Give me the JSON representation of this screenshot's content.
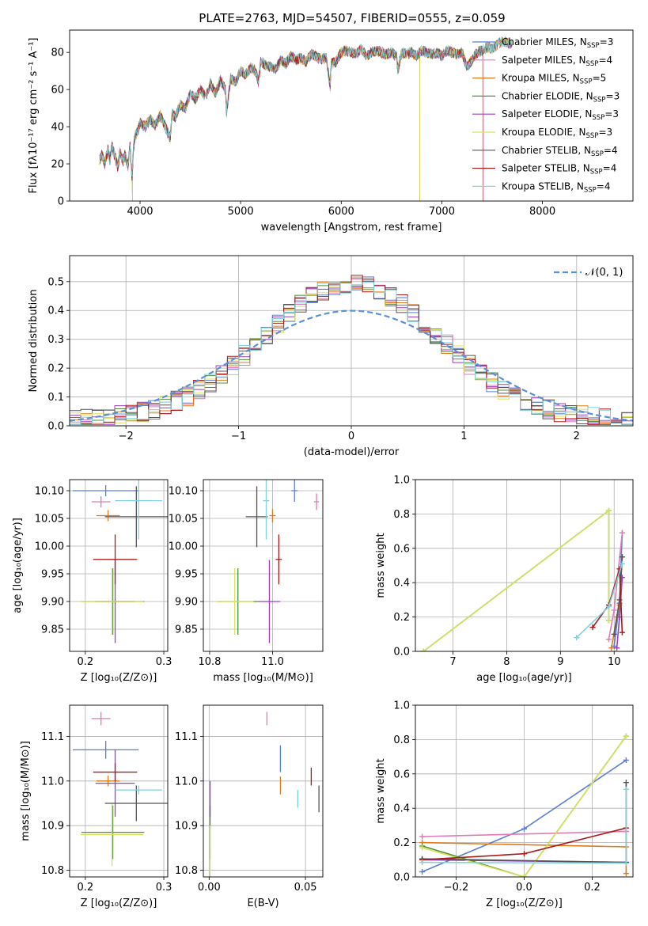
{
  "figure_title": "PLATE=2763, MJD=54507, FIBERID=0555, z=0.059",
  "colors": {
    "Chabrier MILES": "#5b7fd6",
    "Salpeter MILES": "#e07bb5",
    "Kroupa MILES": "#e07a1a",
    "Chabrier ELODIE": "#4f8f3e",
    "Salpeter ELODIE": "#9b3fbf",
    "Kroupa ELODIE": "#d8e25a",
    "Chabrier STELIB": "#555555",
    "Salpeter STELIB": "#a81c1c",
    "Kroupa STELIB": "#7fd3de"
  },
  "chart_data": [
    {
      "id": "spectrum",
      "type": "line",
      "title": "PLATE=2763, MJD=54507, FIBERID=0555, z=0.059",
      "xlabel": "wavelength [Angstrom, rest frame]",
      "ylabel": "Flux [fλ10⁻¹⁷ erg cm⁻² s⁻¹ A⁻¹]",
      "xlim": [
        3300,
        8900
      ],
      "ylim": [
        0,
        92
      ],
      "xticks": [
        4000,
        5000,
        6000,
        7000,
        8000
      ],
      "yticks": [
        0,
        20,
        40,
        60,
        80
      ],
      "legend_position": "upper-right",
      "series_names": [
        "Chabrier MILES, N_SSP=3",
        "Salpeter MILES, N_SSP=4",
        "Kroupa MILES, N_SSP=5",
        "Chabrier ELODIE, N_SSP=3",
        "Salpeter ELODIE, N_SSP=3",
        "Kroupa ELODIE, N_SSP=3",
        "Chabrier STELIB, N_SSP=4",
        "Salpeter STELIB, N_SSP=4",
        "Kroupa STELIB, N_SSP=4"
      ],
      "legend": [
        {
          "prefix": "Chabrier MILES, N",
          "sub": "SSP",
          "suffix": "=3"
        },
        {
          "prefix": "Salpeter MILES, N",
          "sub": "SSP",
          "suffix": "=4"
        },
        {
          "prefix": "Kroupa MILES, N",
          "sub": "SSP",
          "suffix": "=5"
        },
        {
          "prefix": "Chabrier ELODIE, N",
          "sub": "SSP",
          "suffix": "=3"
        },
        {
          "prefix": "Salpeter ELODIE, N",
          "sub": "SSP",
          "suffix": "=3"
        },
        {
          "prefix": "Kroupa ELODIE, N",
          "sub": "SSP",
          "suffix": "=3"
        },
        {
          "prefix": "Chabrier STELIB, N",
          "sub": "SSP",
          "suffix": "=4"
        },
        {
          "prefix": "Salpeter STELIB, N",
          "sub": "SSP",
          "suffix": "=4"
        },
        {
          "prefix": "Kroupa STELIB, N",
          "sub": "SSP",
          "suffix": "=4"
        }
      ],
      "x": [
        3600,
        3620,
        3650,
        3680,
        3700,
        3720,
        3750,
        3780,
        3800,
        3830,
        3850,
        3880,
        3900,
        3920,
        3935,
        3950,
        3980,
        4000,
        4050,
        4100,
        4150,
        4200,
        4250,
        4300,
        4320,
        4350,
        4400,
        4450,
        4500,
        4550,
        4600,
        4650,
        4700,
        4750,
        4800,
        4850,
        4860,
        4900,
        4950,
        5000,
        5050,
        5100,
        5150,
        5175,
        5200,
        5250,
        5300,
        5350,
        5400,
        5450,
        5500,
        5550,
        5600,
        5650,
        5700,
        5750,
        5800,
        5850,
        5890,
        5900,
        5950,
        6000,
        6050,
        6100,
        6150,
        6200,
        6250,
        6300,
        6350,
        6400,
        6450,
        6500,
        6550,
        6563,
        6600,
        6650,
        6700,
        6750,
        6800,
        6850,
        6900,
        6950,
        7000,
        7050,
        7100,
        7150,
        7200,
        7250,
        7300,
        7350,
        7400,
        7450,
        7500,
        7550,
        7600,
        7650,
        7700
      ],
      "y": [
        22,
        25,
        20,
        28,
        22,
        30,
        24,
        18,
        27,
        21,
        25,
        19,
        30,
        12,
        28,
        35,
        38,
        42,
        40,
        44,
        41,
        46,
        40,
        34,
        47,
        45,
        52,
        50,
        58,
        55,
        60,
        56,
        63,
        58,
        65,
        60,
        48,
        66,
        64,
        70,
        68,
        72,
        70,
        64,
        75,
        73,
        72,
        71,
        76,
        74,
        78,
        76,
        77,
        75,
        79,
        78,
        76,
        77,
        62,
        74,
        75,
        80,
        81,
        80,
        79,
        82,
        78,
        80,
        81,
        80,
        79,
        80,
        78,
        70,
        80,
        79,
        80,
        78,
        81,
        80,
        79,
        80,
        78,
        81,
        80,
        79,
        80,
        72,
        76,
        80,
        81,
        83,
        82,
        84,
        86,
        85,
        84
      ]
    },
    {
      "id": "residual_hist",
      "type": "line",
      "xlabel": "(data-model)/error",
      "ylabel": "Normed distribution",
      "xlim": [
        -2.5,
        2.5
      ],
      "ylim": [
        0,
        0.59
      ],
      "xticks": [
        -2,
        -1,
        0,
        1,
        2
      ],
      "yticks": [
        0.0,
        0.1,
        0.2,
        0.3,
        0.4,
        0.5
      ],
      "legend_position": "upper-right",
      "legend_label": "𝒩(0, 1)",
      "series": [
        {
          "name": "N(0,1)",
          "mu": 0,
          "sigma": 1
        }
      ]
    },
    {
      "id": "age_vs_Z",
      "type": "scatter",
      "xlabel": "Z [log₁₀(Z/Z⊙)]",
      "ylabel": "age  [log₁₀(age/yr)]",
      "xlim": [
        0.18,
        0.305
      ],
      "ylim": [
        9.81,
        10.12
      ],
      "xticks": [
        0.2,
        0.3
      ],
      "yticks": [
        9.85,
        9.9,
        9.95,
        10.0,
        10.05,
        10.1
      ],
      "points": [
        {
          "name": "Chabrier MILES",
          "x": 0.226,
          "y": 10.1,
          "xerr": 0.042,
          "yerr": 0.01
        },
        {
          "name": "Salpeter MILES",
          "x": 0.22,
          "y": 10.08,
          "xerr": 0.012,
          "yerr": 0.01
        },
        {
          "name": "Kroupa MILES",
          "x": 0.229,
          "y": 10.055,
          "xerr": 0.015,
          "yerr": 0.01
        },
        {
          "name": "Chabrier ELODIE",
          "x": 0.235,
          "y": 9.9,
          "xerr": 0.04,
          "yerr": 0.06
        },
        {
          "name": "Salpeter ELODIE",
          "x": 0.238,
          "y": 9.9,
          "xerr": 0.025,
          "yerr": 0.075
        },
        {
          "name": "Kroupa ELODIE",
          "x": 0.234,
          "y": 9.9,
          "xerr": 0.04,
          "yerr": 0.06
        },
        {
          "name": "Chabrier STELIB",
          "x": 0.265,
          "y": 10.053,
          "xerr": 0.04,
          "yerr": 0.055
        },
        {
          "name": "Salpeter STELIB",
          "x": 0.238,
          "y": 9.976,
          "xerr": 0.028,
          "yerr": 0.045
        },
        {
          "name": "Kroupa STELIB",
          "x": 0.268,
          "y": 10.082,
          "xerr": 0.03,
          "yerr": 0.07
        }
      ]
    },
    {
      "id": "age_vs_mass",
      "type": "scatter",
      "xlabel": "mass [log₁₀(M/M⊙)]",
      "xlim": [
        10.78,
        11.16
      ],
      "ylim": [
        9.81,
        10.12
      ],
      "xticks": [
        10.8,
        11.0
      ],
      "yticks": [
        9.85,
        9.9,
        9.95,
        10.0,
        10.05,
        10.1
      ],
      "points": [
        {
          "name": "Chabrier MILES",
          "x": 11.07,
          "y": 10.1,
          "xerr": 0.01,
          "yerr": 0.02
        },
        {
          "name": "Salpeter MILES",
          "x": 11.14,
          "y": 10.08,
          "xerr": 0.008,
          "yerr": 0.015
        },
        {
          "name": "Kroupa MILES",
          "x": 11.0,
          "y": 10.055,
          "xerr": 0.01,
          "yerr": 0.012
        },
        {
          "name": "Chabrier ELODIE",
          "x": 10.89,
          "y": 9.9,
          "xerr": 0.065,
          "yerr": 0.06
        },
        {
          "name": "Salpeter ELODIE",
          "x": 10.99,
          "y": 9.9,
          "xerr": 0.035,
          "yerr": 0.075
        },
        {
          "name": "Kroupa ELODIE",
          "x": 10.88,
          "y": 9.9,
          "xerr": 0.06,
          "yerr": 0.06
        },
        {
          "name": "Chabrier STELIB",
          "x": 10.95,
          "y": 10.053,
          "xerr": 0.035,
          "yerr": 0.055
        },
        {
          "name": "Salpeter STELIB",
          "x": 11.02,
          "y": 9.976,
          "xerr": 0.01,
          "yerr": 0.045
        },
        {
          "name": "Kroupa STELIB",
          "x": 10.98,
          "y": 10.082,
          "xerr": 0.01,
          "yerr": 0.07
        }
      ]
    },
    {
      "id": "mass_weight_vs_age",
      "type": "line",
      "xlabel": "age  [log₁₀(age/yr)]",
      "ylabel": "mass weight",
      "xlim": [
        6.3,
        10.35
      ],
      "ylim": [
        0,
        1.0
      ],
      "xticks": [
        7,
        8,
        9,
        10
      ],
      "yticks": [
        0.0,
        0.2,
        0.4,
        0.6,
        0.8,
        1.0
      ],
      "series": [
        {
          "name": "Chabrier MILES",
          "x": [
            10.0,
            10.1,
            10.15
          ],
          "y": [
            0.03,
            0.28,
            0.69
          ]
        },
        {
          "name": "Salpeter MILES",
          "x": [
            9.9,
            10.0,
            10.15
          ],
          "y": [
            0.07,
            0.24,
            0.69
          ]
        },
        {
          "name": "Kroupa MILES",
          "x": [
            9.95,
            10.05,
            10.1,
            10.15
          ],
          "y": [
            0.02,
            0.2,
            0.27,
            0.55
          ]
        },
        {
          "name": "Chabrier ELODIE",
          "x": [
            6.45,
            9.9,
            9.9
          ],
          "y": [
            0.0,
            0.82,
            0.18
          ]
        },
        {
          "name": "Salpeter ELODIE",
          "x": [
            10.05,
            10.1,
            10.15
          ],
          "y": [
            0.02,
            0.2,
            0.43
          ]
        },
        {
          "name": "Kroupa ELODIE",
          "x": [
            6.45,
            9.9,
            9.9
          ],
          "y": [
            0.0,
            0.82,
            0.18
          ]
        },
        {
          "name": "Chabrier STELIB",
          "x": [
            10.0,
            10.1,
            10.15
          ],
          "y": [
            0.1,
            0.3,
            0.55
          ]
        },
        {
          "name": "Salpeter STELIB",
          "x": [
            9.6,
            9.9,
            10.1,
            10.15
          ],
          "y": [
            0.14,
            0.27,
            0.48,
            0.11
          ]
        },
        {
          "name": "Kroupa STELIB",
          "x": [
            9.3,
            9.9,
            10.15
          ],
          "y": [
            0.08,
            0.26,
            0.51
          ]
        }
      ]
    },
    {
      "id": "mass_vs_Z",
      "type": "scatter",
      "xlabel": "Z [log₁₀(Z/Z⊙)]",
      "ylabel": "mass [log₁₀(M/M⊙)]",
      "xlim": [
        0.18,
        0.305
      ],
      "ylim": [
        10.785,
        11.17
      ],
      "xticks": [
        0.2,
        0.3
      ],
      "yticks": [
        10.8,
        10.9,
        11.0,
        11.1
      ],
      "points": [
        {
          "name": "Chabrier MILES",
          "x": 0.226,
          "y": 11.07,
          "xerr": 0.042,
          "yerr": 0.02
        },
        {
          "name": "Salpeter MILES",
          "x": 0.22,
          "y": 11.14,
          "xerr": 0.012,
          "yerr": 0.015
        },
        {
          "name": "Kroupa MILES",
          "x": 0.229,
          "y": 11.0,
          "xerr": 0.015,
          "yerr": 0.012
        },
        {
          "name": "Chabrier ELODIE",
          "x": 0.235,
          "y": 10.885,
          "xerr": 0.04,
          "yerr": 0.06
        },
        {
          "name": "Salpeter ELODIE",
          "x": 0.238,
          "y": 10.995,
          "xerr": 0.025,
          "yerr": 0.075
        },
        {
          "name": "Kroupa ELODIE",
          "x": 0.234,
          "y": 10.88,
          "xerr": 0.04,
          "yerr": 0.07
        },
        {
          "name": "Chabrier STELIB",
          "x": 0.265,
          "y": 10.95,
          "xerr": 0.04,
          "yerr": 0.04
        },
        {
          "name": "Salpeter STELIB",
          "x": 0.238,
          "y": 11.02,
          "xerr": 0.028,
          "yerr": 0.02
        },
        {
          "name": "Kroupa STELIB",
          "x": 0.268,
          "y": 10.98,
          "xerr": 0.03,
          "yerr": 0.01
        }
      ]
    },
    {
      "id": "mass_vs_ebv",
      "type": "scatter",
      "xlabel": "E(B-V)",
      "xlim": [
        -0.003,
        0.059
      ],
      "ylim": [
        10.785,
        11.17
      ],
      "xticks": [
        0.0,
        0.05
      ],
      "yticks": [
        10.8,
        10.9,
        11.0,
        11.1
      ],
      "points": [
        {
          "name": "Chabrier MILES",
          "x": 0.037,
          "y": 11.05,
          "yerr": 0.03
        },
        {
          "name": "Salpeter MILES",
          "x": 0.03,
          "y": 11.14,
          "yerr": 0.015
        },
        {
          "name": "Kroupa MILES",
          "x": 0.037,
          "y": 10.99,
          "yerr": 0.02
        },
        {
          "name": "Chabrier ELODIE",
          "x": 0.0005,
          "y": 10.885,
          "yerr": 0.06
        },
        {
          "name": "Salpeter ELODIE",
          "x": 0.0005,
          "y": 10.96,
          "yerr": 0.04
        },
        {
          "name": "Kroupa ELODIE",
          "x": 0.0005,
          "y": 10.84,
          "yerr": 0.06
        },
        {
          "name": "Chabrier STELIB",
          "x": 0.057,
          "y": 10.96,
          "yerr": 0.03
        },
        {
          "name": "Salpeter STELIB",
          "x": 0.053,
          "y": 11.01,
          "yerr": 0.02
        },
        {
          "name": "Kroupa STELIB",
          "x": 0.046,
          "y": 10.96,
          "yerr": 0.02
        }
      ]
    },
    {
      "id": "mass_weight_vs_Z",
      "type": "line",
      "xlabel": "Z [log₁₀(Z/Z⊙)]",
      "ylabel": "mass weight",
      "xlim": [
        -0.32,
        0.32
      ],
      "ylim": [
        0,
        1.0
      ],
      "xticks": [
        -0.2,
        0.0,
        0.2
      ],
      "yticks": [
        0.0,
        0.2,
        0.4,
        0.6,
        0.8,
        1.0
      ],
      "series": [
        {
          "name": "Chabrier MILES",
          "x": [
            -0.3,
            0.0,
            0.3
          ],
          "y": [
            0.03,
            0.28,
            0.68
          ]
        },
        {
          "name": "Salpeter MILES",
          "x": [
            -0.3,
            0.3
          ],
          "y": [
            0.235,
            0.265
          ]
        },
        {
          "name": "Kroupa MILES",
          "x": [
            -0.3,
            0.3,
            0.3
          ],
          "y": [
            0.2,
            0.175,
            0.02
          ]
        },
        {
          "name": "Chabrier ELODIE",
          "x": [
            -0.3,
            0.0,
            0.3
          ],
          "y": [
            0.18,
            0.0,
            0.82
          ]
        },
        {
          "name": "Salpeter ELODIE",
          "x": [
            -0.3,
            0.3
          ],
          "y": [
            0.1,
            0.085
          ]
        },
        {
          "name": "Kroupa ELODIE",
          "x": [
            -0.3,
            0.0,
            0.3
          ],
          "y": [
            0.17,
            0.0,
            0.82
          ]
        },
        {
          "name": "Chabrier STELIB",
          "x": [
            -0.3,
            0.3,
            0.3
          ],
          "y": [
            0.105,
            0.085,
            0.55
          ]
        },
        {
          "name": "Salpeter STELIB",
          "x": [
            -0.3,
            0.0,
            0.3
          ],
          "y": [
            0.1,
            0.135,
            0.285
          ]
        },
        {
          "name": "Kroupa STELIB",
          "x": [
            -0.3,
            0.3,
            0.3
          ],
          "y": [
            0.085,
            0.08,
            0.51
          ]
        }
      ]
    }
  ]
}
